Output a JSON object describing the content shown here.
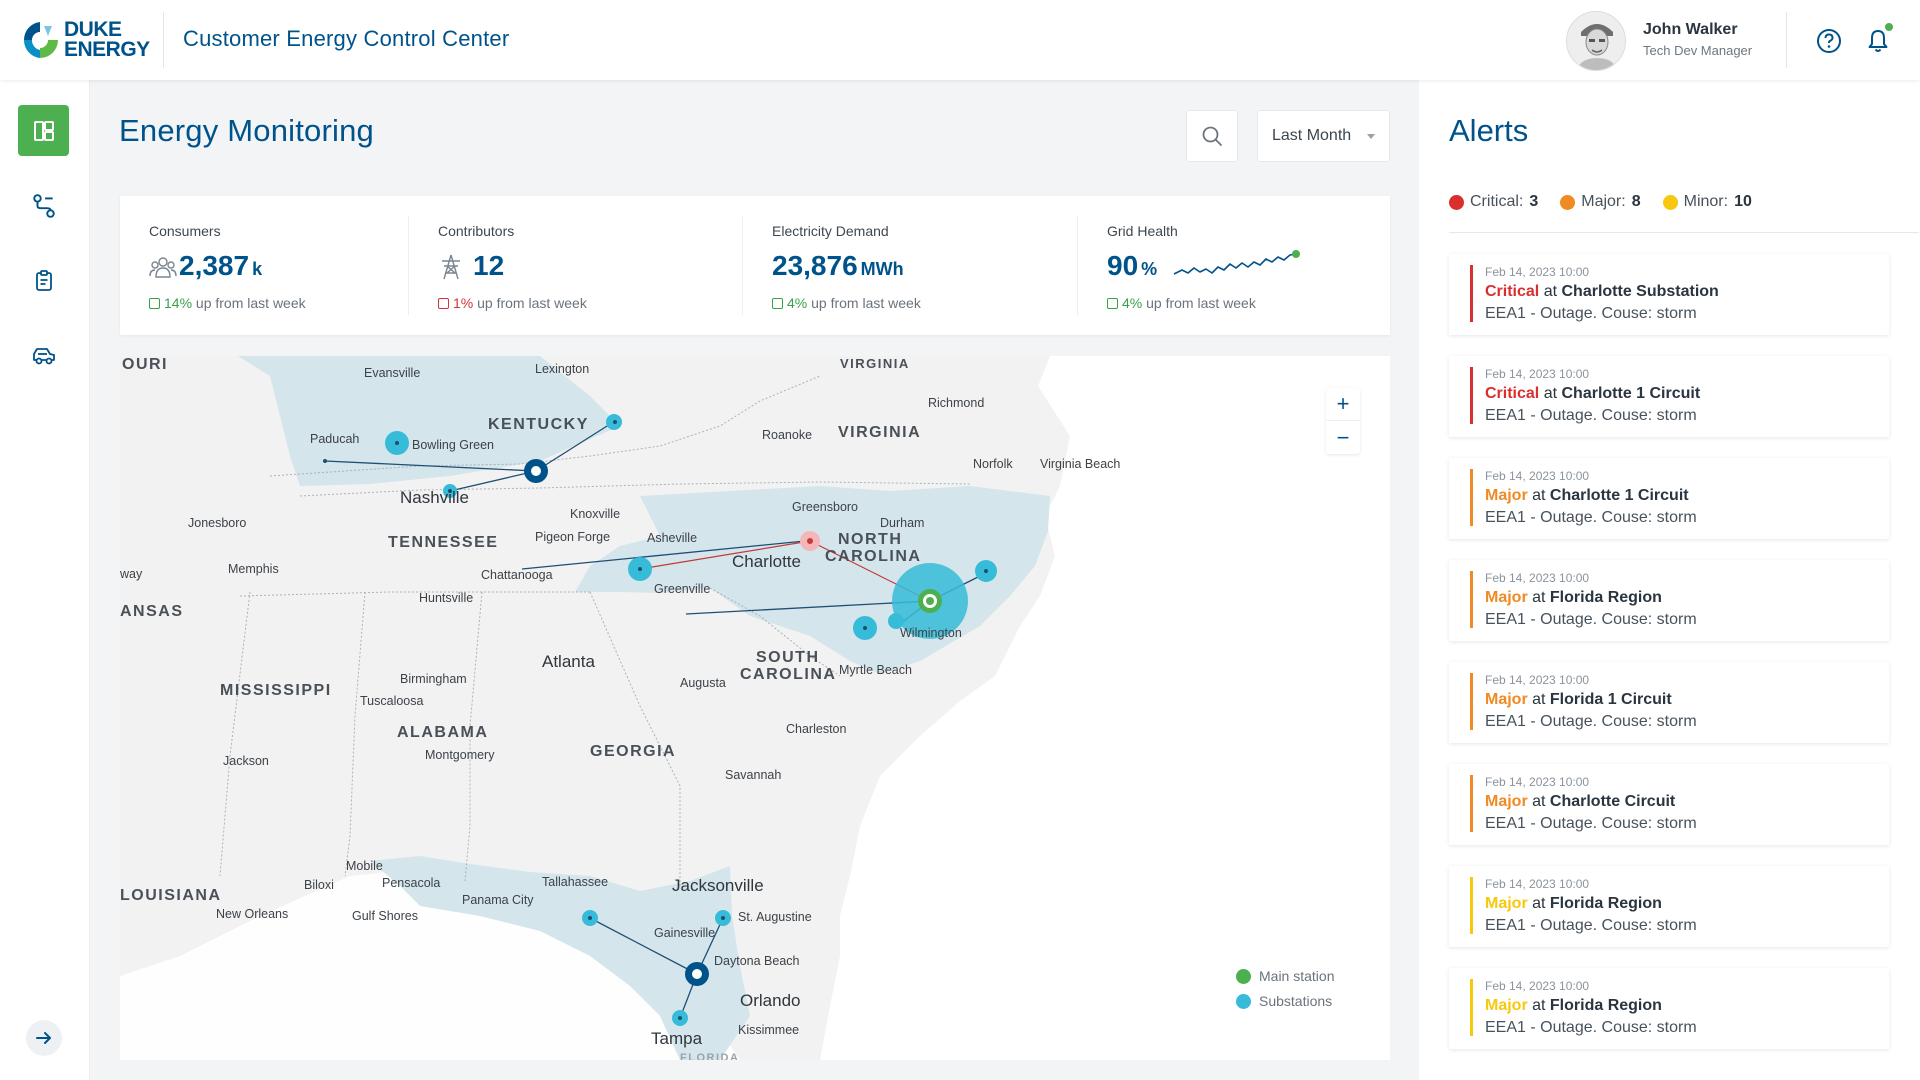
{
  "header": {
    "logo_line1": "DUKE",
    "logo_line2": "ENERGY",
    "app_title": "Customer Energy Control Center",
    "user_name": "John Walker",
    "user_role": "Tech Dev Manager",
    "icons": [
      "help-icon",
      "bell-icon"
    ]
  },
  "sidebar": {
    "items": [
      {
        "icon": "dashboard-icon",
        "active": true
      },
      {
        "icon": "route-icon",
        "active": false
      },
      {
        "icon": "clipboard-icon",
        "active": false
      },
      {
        "icon": "vehicle-icon",
        "active": false
      }
    ],
    "expand_icon": "arrow-right-icon"
  },
  "main": {
    "title": "Energy Monitoring",
    "range_value": "Last Month"
  },
  "kpis": [
    {
      "label": "Consumers",
      "value": "2,387",
      "unit": "k",
      "trend_pct": "14%",
      "trend_text": " up from last week",
      "direction": "up",
      "icon": "people-icon"
    },
    {
      "label": "Contributors",
      "value": "12",
      "unit": "",
      "trend_pct": "1%",
      "trend_text": " up from last week",
      "direction": "down",
      "icon": "tower-icon"
    },
    {
      "label": "Electricity Demand",
      "value": "23,876",
      "unit": "MWh",
      "trend_pct": "4%",
      "trend_text": " up from last week",
      "direction": "up",
      "icon": ""
    },
    {
      "label": "Grid Health",
      "value": "90",
      "unit": "%",
      "trend_pct": "4%",
      "trend_text": " up from last week",
      "direction": "up",
      "icon": "sparkline"
    }
  ],
  "map": {
    "states": [
      "OURI",
      "KENTUCKY",
      "VIRGINIA",
      "TENNESSEE",
      "NORTH",
      "CAROLINA",
      "ANSAS",
      "SOUTH",
      "CAROLINA",
      "MISSISSIPPI",
      "ALABAMA",
      "GEORGIA",
      "LOUISIANA",
      "VIRGINIA"
    ],
    "cities": [
      "Evansville",
      "Lexington",
      "Richmond",
      "Paducah",
      "Bowling Green",
      "Roanoke",
      "Norfolk",
      "Virginia Beach",
      "Nashville",
      "Greensboro",
      "Knoxville",
      "Durham",
      "Jonesboro",
      "Pigeon Forge",
      "Asheville",
      "Charlotte",
      "Memphis",
      "Chattanooga",
      "Greenville",
      "Huntsville",
      "Wilmington",
      "Atlanta",
      "Birmingham",
      "Augusta",
      "Myrtle Beach",
      "Tuscaloosa",
      "Montgomery",
      "Charleston",
      "Jackson",
      "Savannah",
      "Mobile",
      "Biloxi",
      "Pensacola",
      "Tallahassee",
      "Jacksonville",
      "Panama City",
      "New Orleans",
      "Gulf Shores",
      "St. Augustine",
      "Gainesville",
      "Daytona Beach",
      "Orlando",
      "Tampa",
      "Kissimmee",
      "way",
      "FLORIDA"
    ],
    "legend": {
      "main": "Main station",
      "sub": "Substations"
    },
    "zoom_in": "+",
    "zoom_out": "−",
    "colors": {
      "main": "#4caf50",
      "sub": "#36bcd8",
      "region": "#d5e5ec",
      "hub": "#00538a"
    }
  },
  "alerts": {
    "title": "Alerts",
    "summary": [
      {
        "label": "Critical:",
        "count": "3",
        "color": "#d9302f"
      },
      {
        "label": "Major:",
        "count": "8",
        "color": "#f08a24"
      },
      {
        "label": "Minor:",
        "count": "10",
        "color": "#f6c90e"
      }
    ],
    "items": [
      {
        "time": "Feb 14, 2023 10:00",
        "severity": "Critical",
        "at": " at ",
        "location": "Charlotte Substation",
        "desc": "EEA1 - Outage. Couse: storm",
        "color": "#d9302f"
      },
      {
        "time": "Feb 14, 2023 10:00",
        "severity": "Critical",
        "at": " at ",
        "location": "Charlotte 1 Circuit",
        "desc": "EEA1 - Outage. Couse: storm",
        "color": "#d9302f"
      },
      {
        "time": "Feb 14, 2023 10:00",
        "severity": "Major",
        "at": " at ",
        "location": "Charlotte 1 Circuit",
        "desc": "EEA1 - Outage. Couse: storm",
        "color": "#f08a24"
      },
      {
        "time": "Feb 14, 2023 10:00",
        "severity": "Major",
        "at": " at ",
        "location": "Florida Region",
        "desc": "EEA1 - Outage. Couse: storm",
        "color": "#f08a24"
      },
      {
        "time": "Feb 14, 2023 10:00",
        "severity": "Major",
        "at": " at ",
        "location": "Florida 1 Circuit",
        "desc": "EEA1 - Outage. Couse: storm",
        "color": "#f08a24"
      },
      {
        "time": "Feb 14, 2023 10:00",
        "severity": "Major",
        "at": " at ",
        "location": "Charlotte Circuit",
        "desc": "EEA1 - Outage. Couse: storm",
        "color": "#f08a24"
      },
      {
        "time": "Feb 14, 2023 10:00",
        "severity": "Major",
        "at": " at ",
        "location": "Florida Region",
        "desc": "EEA1 - Outage. Couse: storm",
        "color": "#f6c90e"
      },
      {
        "time": "Feb 14, 2023 10:00",
        "severity": "Major",
        "at": " at ",
        "location": "Florida Region",
        "desc": "EEA1 - Outage. Couse: storm",
        "color": "#f6c90e"
      }
    ]
  }
}
